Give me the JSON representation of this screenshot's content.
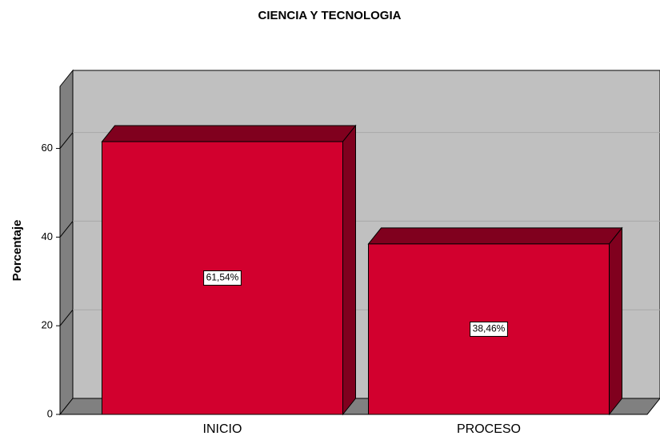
{
  "chart_data": {
    "type": "bar3d",
    "title": "CIENCIA Y TECNOLOGIA",
    "ylabel": "Porcentaje",
    "categories": [
      "INICIO",
      "PROCESO"
    ],
    "values": [
      61.54,
      38.46
    ],
    "value_labels": [
      "61,54%",
      "38,46%"
    ],
    "color": "#d2002e",
    "ylim": [
      0,
      74
    ],
    "yticks": [
      0,
      20,
      40,
      60
    ],
    "grid": true
  }
}
